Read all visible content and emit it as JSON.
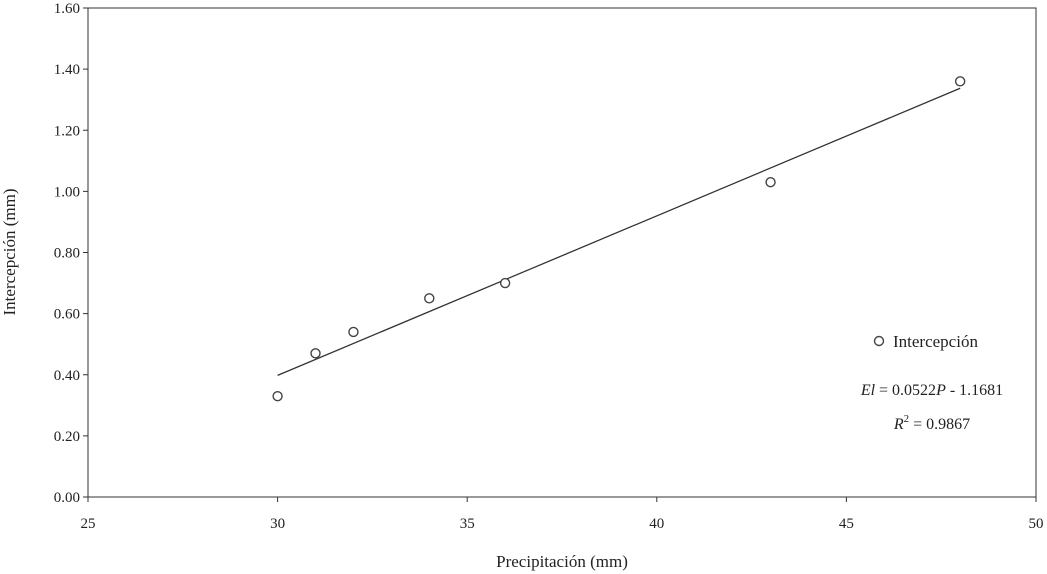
{
  "chart_data": {
    "type": "scatter",
    "xlabel": "Precipitación (mm)",
    "ylabel": "Intercepción (mm)",
    "xlim": [
      25,
      50
    ],
    "ylim": [
      0,
      1.6
    ],
    "x_ticks": [
      "25",
      "30",
      "35",
      "40",
      "45",
      "50"
    ],
    "y_ticks": [
      "0.00",
      "0.20",
      "0.40",
      "0.60",
      "0.80",
      "1.00",
      "1.20",
      "1.40",
      "1.60"
    ],
    "grid": false,
    "legend_position": "right",
    "series": [
      {
        "name": "Intercepción",
        "x": [
          30,
          31,
          32,
          34,
          36,
          43,
          48
        ],
        "y": [
          0.33,
          0.47,
          0.54,
          0.65,
          0.7,
          1.03,
          1.36
        ]
      }
    ],
    "trendline": {
      "slope": 0.0522,
      "intercept": -1.1681,
      "x_range": [
        30,
        48
      ]
    },
    "annotations": {
      "eq_lhs": "El",
      "eq_mid": " = 0.0522",
      "eq_var": "P",
      "eq_tail": " - 1.1681",
      "r2_lhs": "R",
      "r2_sup": "2",
      "r2_tail": " = 0.9867"
    }
  }
}
